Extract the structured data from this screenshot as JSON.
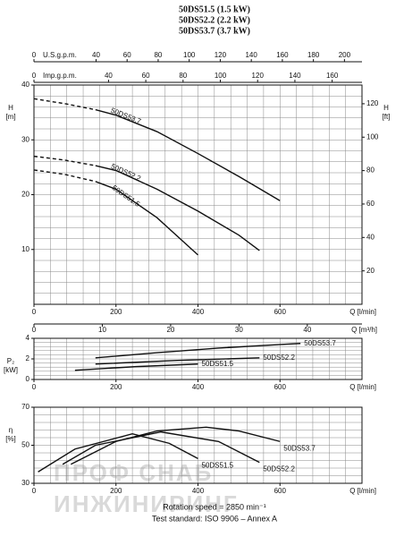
{
  "header": {
    "lines": [
      "50DS51.5 (1.5 kW)",
      "50DS52.2 (2.2 kW)",
      "50DS53.7 (3.7 kW)"
    ]
  },
  "footer": {
    "lines": [
      "Rotation speed = 2850 min⁻¹",
      "Test standard: ISO 9906 – Annex A"
    ]
  },
  "watermark": {
    "lines": [
      "ПРОФ СНАБ",
      "ИНЖИНИРИНГ"
    ]
  },
  "chart_data": [
    {
      "type": "line",
      "ylabel": "H",
      "yunit": "[m]",
      "y2label": "H",
      "y2unit": "[ft]",
      "xlabel": "Q [l/min]",
      "xlim": [
        0,
        800
      ],
      "xticks": [
        0,
        200,
        400,
        600
      ],
      "ylim": [
        0,
        40
      ],
      "yticks": [
        10,
        20,
        30,
        40
      ],
      "y2lim": [
        0,
        131.2
      ],
      "y2ticks": [
        20,
        40,
        60,
        80,
        100,
        120
      ],
      "grid": true,
      "dashed_below_x": 150,
      "x_m3h_axis": {
        "label": "Q [m³/h]",
        "xlim": [
          0,
          48
        ],
        "xticks": [
          0,
          10,
          20,
          30,
          40
        ]
      },
      "x_usgpm_axis": {
        "label": "U.S.g.p.m.",
        "xlim": [
          0,
          211.3
        ],
        "xticks": [
          0,
          40,
          60,
          80,
          100,
          120,
          140,
          160,
          180,
          200
        ]
      },
      "x_impgpm_axis": {
        "label": "Imp.g.p.m.",
        "xlim": [
          0,
          176
        ],
        "xticks": [
          0,
          40,
          60,
          80,
          100,
          120,
          140,
          160
        ]
      },
      "series": [
        {
          "name": "50DS53.7",
          "color": "#111",
          "x": [
            0,
            75,
            150,
            200,
            300,
            400,
            500,
            600
          ],
          "values": [
            37.5,
            36.6,
            35.5,
            34.5,
            31.5,
            27.5,
            23.3,
            18.9
          ]
        },
        {
          "name": "50DS52.2",
          "color": "#111",
          "x": [
            0,
            75,
            150,
            200,
            300,
            400,
            500,
            550
          ],
          "values": [
            27,
            26.3,
            25.3,
            24.4,
            21,
            17,
            12.6,
            9.8
          ]
        },
        {
          "name": "50DS51.5",
          "color": "#111",
          "x": [
            0,
            75,
            150,
            200,
            300,
            400
          ],
          "values": [
            24.5,
            23.7,
            22.4,
            21,
            15.8,
            9
          ]
        }
      ]
    },
    {
      "type": "line",
      "ylabel": "P₂",
      "yunit": "[kW]",
      "xlabel": "Q [l/min]",
      "xlim": [
        0,
        800
      ],
      "xticks": [
        0,
        200,
        400,
        600
      ],
      "ylim": [
        0,
        4
      ],
      "yticks": [
        0,
        2,
        4
      ],
      "grid": true,
      "series": [
        {
          "name": "50DS53.7",
          "color": "#111",
          "x": [
            150,
            300,
            450,
            600,
            650
          ],
          "values": [
            2.1,
            2.6,
            3.05,
            3.4,
            3.5
          ]
        },
        {
          "name": "50DS52.2",
          "color": "#111",
          "x": [
            150,
            350,
            550
          ],
          "values": [
            1.5,
            1.85,
            2.1
          ]
        },
        {
          "name": "50DS51.5",
          "color": "#111",
          "x": [
            100,
            250,
            400
          ],
          "values": [
            0.9,
            1.25,
            1.5
          ]
        }
      ]
    },
    {
      "type": "line",
      "ylabel": "η",
      "yunit": "[%]",
      "xlabel": "Q [l/min]",
      "xlim": [
        0,
        800
      ],
      "xticks": [
        0,
        200,
        400,
        600
      ],
      "ylim": [
        30,
        70
      ],
      "yticks": [
        30,
        50,
        70
      ],
      "grid": true,
      "series": [
        {
          "name": "50DS53.7",
          "color": "#111",
          "x": [
            90,
            200,
            300,
            420,
            500,
            600
          ],
          "values": [
            40,
            52,
            57.5,
            59.5,
            57.5,
            52
          ]
        },
        {
          "name": "50DS52.2",
          "color": "#111",
          "x": [
            70,
            150,
            310,
            450,
            550
          ],
          "values": [
            40,
            50,
            57,
            52,
            41
          ]
        },
        {
          "name": "50DS51.5",
          "color": "#111",
          "x": [
            10,
            100,
            240,
            330,
            400
          ],
          "values": [
            36,
            48,
            56,
            51,
            43
          ]
        }
      ]
    }
  ]
}
